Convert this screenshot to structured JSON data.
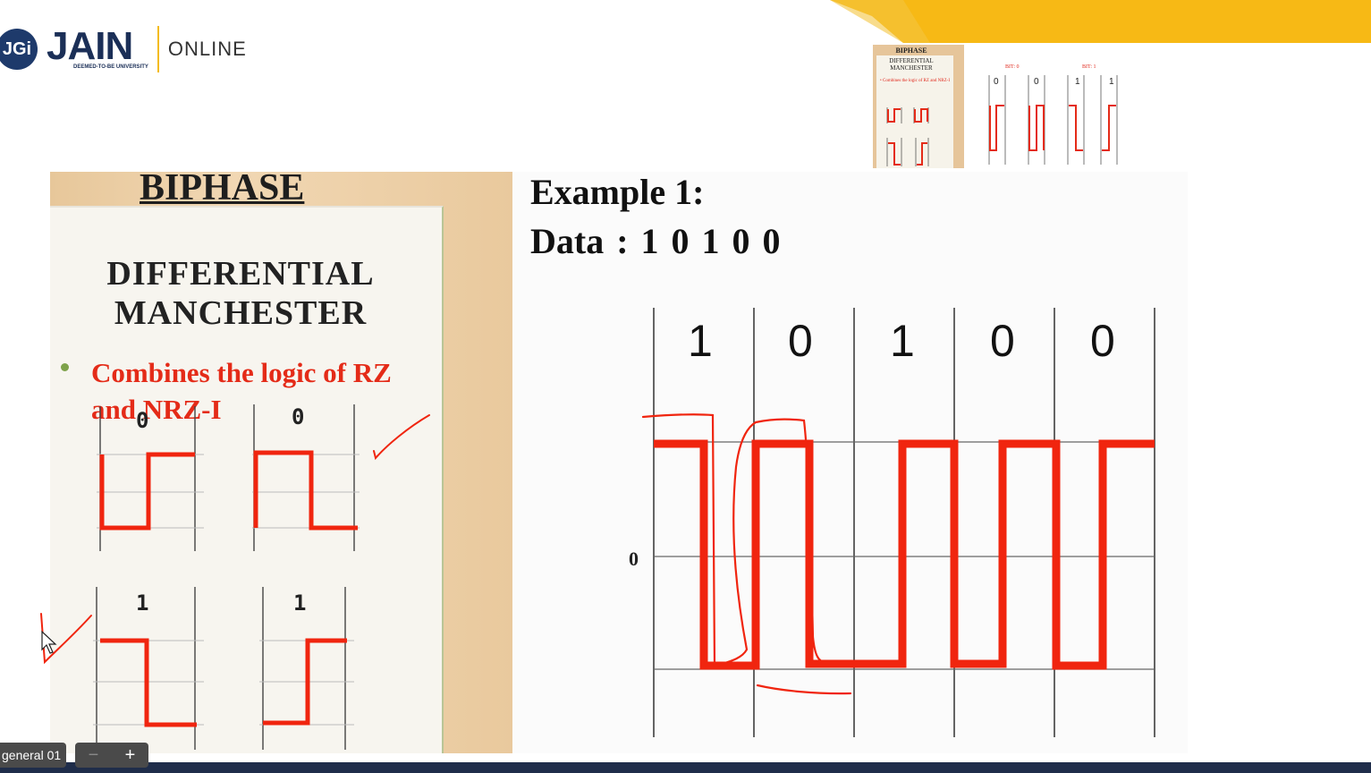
{
  "header": {
    "logo_mark": "JGi",
    "logo_word": "JAIN",
    "logo_subtitle": "DEEMED-TO-BE UNIVERSITY",
    "logo_suffix": "ONLINE",
    "accent_color": "#f7b915",
    "brand_color": "#1b2f57"
  },
  "thumbnail": {
    "title": "BIPHASE",
    "subtitle_line1": "DIFFERENTIAL",
    "subtitle_line2": "MANCHESTER",
    "bullet": "• Combines the logic of RZ and NRZ-I",
    "caption_bit0": "BIT: 0",
    "caption_bit1": "BIT: 1",
    "bits": [
      "0",
      "0",
      "1",
      "1"
    ]
  },
  "slide_left": {
    "title": "BIPHASE",
    "subtitle_line1": "DIFFERENTIAL",
    "subtitle_line2": "MANCHESTER",
    "bullet": "Combines the logic of RZ and NRZ-I",
    "diagram_labels": [
      "0",
      "0",
      "1",
      "1"
    ]
  },
  "slide_right": {
    "example_title": "Example 1:",
    "data_label": "Data :  1 0 1 0 0",
    "bits": [
      "1",
      "0",
      "1",
      "0",
      "0"
    ],
    "zero_label": "0",
    "signal_color": "#f0250f"
  },
  "bottom": {
    "tag": "general 01",
    "zoom_minus": "−",
    "zoom_plus": "+"
  }
}
